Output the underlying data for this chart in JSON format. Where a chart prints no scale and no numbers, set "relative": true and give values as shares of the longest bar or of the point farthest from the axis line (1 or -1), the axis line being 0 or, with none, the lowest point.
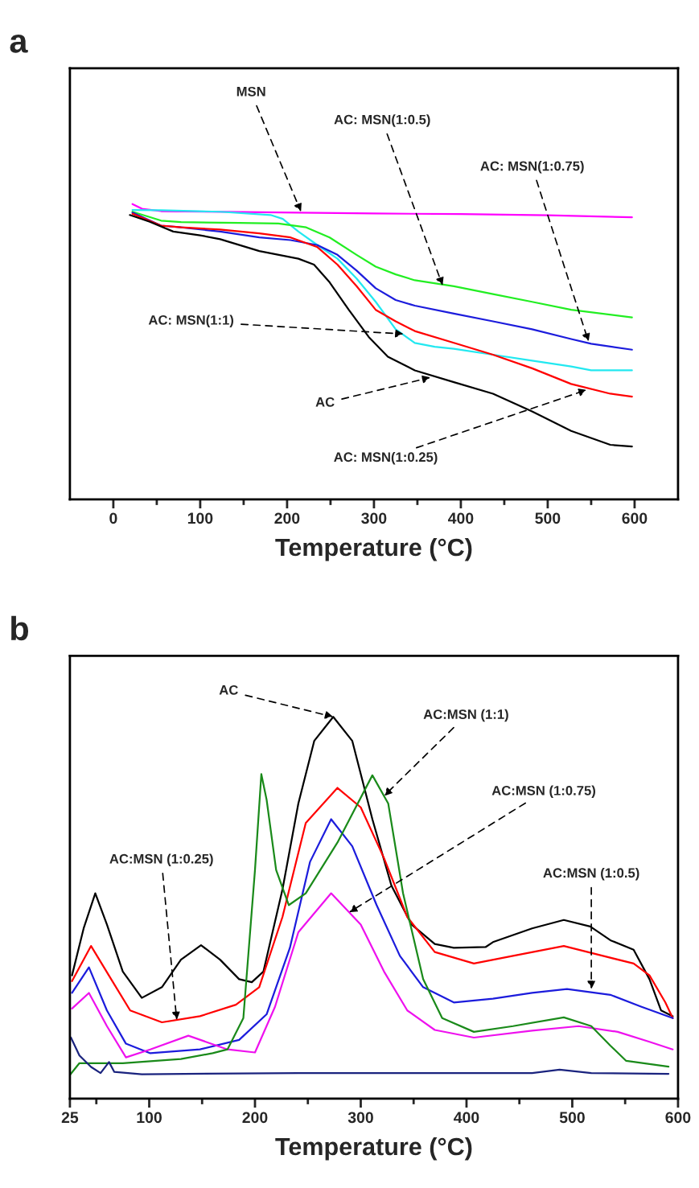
{
  "chart_data": [
    {
      "type": "line",
      "title": "a",
      "xlabel": "Temperature (°C)",
      "relative": true,
      "tick_labels": "x",
      "grid": false,
      "xlim": [
        -50,
        650
      ],
      "xticks": [
        0,
        {
          "value": 50,
          "label": null
        },
        100,
        {
          "value": 150,
          "label": null
        },
        200,
        {
          "value": 250,
          "label": null
        },
        300,
        {
          "value": 350,
          "label": null
        },
        400,
        {
          "value": 450,
          "label": null
        },
        500,
        {
          "value": 550,
          "label": null
        },
        600
      ],
      "series": [
        {
          "color": "#ff00ff",
          "x": [
            22,
            33,
            55,
            150,
            213,
            300,
            400,
            500,
            597
          ],
          "values": [
            1.0,
            0.984,
            0.976,
            0.973,
            0.971,
            0.968,
            0.966,
            0.962,
            0.955
          ]
        },
        {
          "color": "#22e8f0",
          "x": [
            22,
            55,
            123,
            181,
            195,
            213,
            235,
            258,
            280,
            302,
            325,
            347,
            370,
            392,
            437,
            482,
            527,
            550,
            597
          ],
          "values": [
            0.98,
            0.979,
            0.974,
            0.963,
            0.95,
            0.907,
            0.861,
            0.815,
            0.748,
            0.669,
            0.576,
            0.53,
            0.517,
            0.51,
            0.49,
            0.47,
            0.45,
            0.437,
            0.437
          ]
        },
        {
          "color": "#22ee22",
          "x": [
            22,
            55,
            78,
            145,
            190,
            222,
            249,
            280,
            302,
            325,
            347,
            392,
            437,
            482,
            527,
            597
          ],
          "values": [
            0.974,
            0.944,
            0.939,
            0.936,
            0.934,
            0.921,
            0.887,
            0.828,
            0.788,
            0.762,
            0.742,
            0.722,
            0.695,
            0.669,
            0.642,
            0.616
          ]
        },
        {
          "color": "#1c1cdc",
          "x": [
            22,
            55,
            78,
            123,
            168,
            204,
            235,
            258,
            280,
            302,
            325,
            347,
            392,
            437,
            482,
            527,
            550,
            597
          ],
          "values": [
            0.971,
            0.927,
            0.921,
            0.907,
            0.887,
            0.878,
            0.861,
            0.828,
            0.775,
            0.715,
            0.675,
            0.656,
            0.629,
            0.603,
            0.576,
            0.543,
            0.527,
            0.507
          ]
        },
        {
          "color": "#ff0000",
          "x": [
            22,
            55,
            78,
            123,
            168,
            204,
            235,
            258,
            280,
            302,
            325,
            347,
            392,
            437,
            482,
            527,
            572,
            597
          ],
          "values": [
            0.967,
            0.927,
            0.921,
            0.914,
            0.901,
            0.887,
            0.854,
            0.795,
            0.722,
            0.642,
            0.603,
            0.57,
            0.53,
            0.49,
            0.444,
            0.391,
            0.358,
            0.348
          ]
        },
        {
          "color": "#000000",
          "x": [
            19,
            42,
            69,
            100,
            123,
            168,
            213,
            231,
            249,
            271,
            294,
            316,
            347,
            392,
            437,
            482,
            527,
            572,
            597
          ],
          "values": [
            0.963,
            0.94,
            0.907,
            0.894,
            0.881,
            0.841,
            0.815,
            0.795,
            0.735,
            0.642,
            0.55,
            0.483,
            0.437,
            0.397,
            0.358,
            0.298,
            0.232,
            0.185,
            0.179
          ]
        }
      ],
      "annotations": [
        {
          "text": "MSN",
          "x": 216,
          "y": 0.974
        },
        {
          "text": "AC: MSN(1:0.5)",
          "x": 379,
          "y": 0.724
        },
        {
          "text": "AC: MSN(1:0.75)",
          "x": 547,
          "y": 0.534
        },
        {
          "text": "AC: MSN(1:1)",
          "x": 334,
          "y": 0.56
        },
        {
          "text": "AC",
          "x": 365,
          "y": 0.413
        },
        {
          "text": "AC: MSN(1:0.25)",
          "x": 545,
          "y": 0.371
        }
      ]
    },
    {
      "type": "line",
      "title": "b",
      "xlabel": "Temperature (°C)",
      "relative": true,
      "tick_labels": "x",
      "grid": false,
      "xlim": [
        25,
        600
      ],
      "xticks": [
        25,
        {
          "value": 50,
          "label": null
        },
        100,
        {
          "value": 150,
          "label": null
        },
        200,
        {
          "value": 250,
          "label": null
        },
        300,
        {
          "value": 350,
          "label": null
        },
        400,
        {
          "value": 450,
          "label": null
        },
        500,
        {
          "value": 550,
          "label": null
        },
        600
      ],
      "series": [
        {
          "color": "#000000",
          "x": [
            27,
            38,
            49,
            60,
            75,
            93,
            112,
            130,
            149,
            167,
            185,
            197,
            208,
            226,
            241,
            256,
            274,
            292,
            311,
            329,
            348,
            370,
            388,
            418,
            425,
            462,
            492,
            517,
            536,
            558,
            573,
            584,
            595
          ],
          "values": [
            0.323,
            0.446,
            0.538,
            0.456,
            0.333,
            0.264,
            0.292,
            0.364,
            0.402,
            0.364,
            0.313,
            0.305,
            0.333,
            0.548,
            0.773,
            0.937,
            1.0,
            0.937,
            0.732,
            0.558,
            0.456,
            0.405,
            0.395,
            0.397,
            0.41,
            0.446,
            0.468,
            0.451,
            0.415,
            0.39,
            0.313,
            0.231,
            0.216
          ]
        },
        {
          "color": "#ff0000",
          "x": [
            27,
            45,
            64,
            82,
            112,
            148,
            182,
            204,
            226,
            248,
            278,
            300,
            322,
            344,
            370,
            407,
            444,
            492,
            529,
            558,
            573,
            588,
            595
          ],
          "values": [
            0.308,
            0.4,
            0.313,
            0.231,
            0.2,
            0.216,
            0.246,
            0.292,
            0.476,
            0.722,
            0.814,
            0.763,
            0.63,
            0.476,
            0.384,
            0.354,
            0.374,
            0.4,
            0.374,
            0.354,
            0.323,
            0.252,
            0.211
          ]
        },
        {
          "color": "#1c1cdc",
          "x": [
            27,
            43,
            60,
            78,
            101,
            148,
            185,
            211,
            233,
            252,
            272,
            292,
            315,
            337,
            359,
            388,
            425,
            462,
            495,
            536,
            565,
            595
          ],
          "values": [
            0.277,
            0.344,
            0.231,
            0.144,
            0.119,
            0.129,
            0.154,
            0.221,
            0.395,
            0.62,
            0.732,
            0.661,
            0.507,
            0.374,
            0.292,
            0.252,
            0.262,
            0.277,
            0.287,
            0.272,
            0.241,
            0.211
          ]
        },
        {
          "color": "#ee11ee",
          "x": [
            27,
            43,
            60,
            78,
            101,
            137,
            174,
            200,
            219,
            241,
            272,
            300,
            322,
            344,
            370,
            407,
            462,
            506,
            543,
            573,
            595
          ],
          "values": [
            0.236,
            0.277,
            0.19,
            0.108,
            0.129,
            0.165,
            0.129,
            0.121,
            0.241,
            0.436,
            0.538,
            0.456,
            0.333,
            0.231,
            0.18,
            0.16,
            0.178,
            0.19,
            0.175,
            0.149,
            0.129
          ]
        },
        {
          "color": "#1a8a1a",
          "x": [
            25,
            34,
            75,
            130,
            160,
            174,
            189,
            200,
            206,
            211,
            220,
            232,
            248,
            278,
            311,
            326,
            340,
            359,
            377,
            407,
            444,
            492,
            518,
            536,
            551,
            591
          ],
          "values": [
            0.062,
            0.093,
            0.093,
            0.104,
            0.119,
            0.129,
            0.211,
            0.599,
            0.85,
            0.783,
            0.599,
            0.507,
            0.538,
            0.671,
            0.847,
            0.773,
            0.538,
            0.313,
            0.211,
            0.175,
            0.19,
            0.213,
            0.19,
            0.139,
            0.099,
            0.084
          ]
        },
        {
          "color": "#1a237e",
          "x": [
            26,
            34,
            45,
            54,
            62,
            67,
            93,
            241,
            462,
            488,
            518,
            591
          ],
          "values": [
            0.16,
            0.113,
            0.083,
            0.067,
            0.096,
            0.07,
            0.064,
            0.067,
            0.067,
            0.076,
            0.067,
            0.065
          ]
        }
      ],
      "annotations": [
        {
          "text": "AC",
          "x": 274,
          "y": 1.0
        },
        {
          "text": "AC:MSN (1:1)",
          "x": 322,
          "y": 0.793
        },
        {
          "text": "AC:MSN (1:0.75)",
          "x": 289,
          "y": 0.488
        },
        {
          "text": "AC:MSN (1:0.25)",
          "x": 126,
          "y": 0.206
        },
        {
          "text": "AC:MSN (1:0.5)",
          "x": 518,
          "y": 0.287
        }
      ]
    }
  ]
}
